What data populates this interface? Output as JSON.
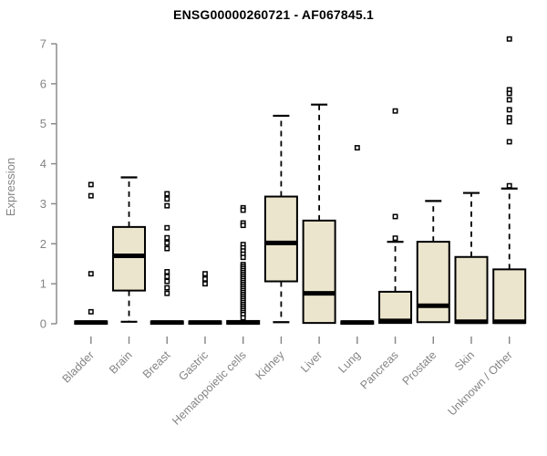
{
  "title": "ENSG00000260721 - AF067845.1",
  "colors": {
    "box_fill": "#ECE5CD",
    "box_stroke": "#000000",
    "median": "#000000",
    "whisker": "#000000",
    "outlier_stroke": "#000000",
    "outlier_fill": "#ffffff",
    "axis": "#848484",
    "axis_text": "#848484",
    "title_text": "#000000",
    "background": "#ffffff"
  },
  "chart_data": {
    "type": "boxplot",
    "title": "ENSG00000260721 - AF067845.1",
    "xlabel": "",
    "ylabel": "Expression",
    "ylim": [
      0,
      7
    ],
    "yticks": [
      0,
      1,
      2,
      3,
      4,
      5,
      6,
      7
    ],
    "grid": false,
    "legend": "none",
    "categories": [
      "Bladder",
      "Brain",
      "Breast",
      "Gastric",
      "Hematopoietic cells",
      "Kidney",
      "Liver",
      "Lung",
      "Pancreas",
      "Prostate",
      "Skin",
      "Unknown / Other"
    ],
    "series": [
      {
        "name": "Bladder",
        "whisker_low": 0,
        "q1": 0,
        "median": 0.03,
        "q3": 0.06,
        "whisker_high": 0.06,
        "outliers": [
          3.48,
          3.2,
          1.25,
          0.3
        ]
      },
      {
        "name": "Brain",
        "whisker_low": 0.05,
        "q1": 0.83,
        "median": 1.7,
        "q3": 2.42,
        "whisker_high": 3.66,
        "outliers": []
      },
      {
        "name": "Breast",
        "whisker_low": 0,
        "q1": 0,
        "median": 0.03,
        "q3": 0.06,
        "whisker_high": 0.06,
        "outliers": [
          3.25,
          3.12,
          2.95,
          2.4,
          2.15,
          2.02,
          1.88,
          1.3,
          1.18,
          1.06,
          0.9,
          0.76
        ]
      },
      {
        "name": "Gastric",
        "whisker_low": 0,
        "q1": 0,
        "median": 0.03,
        "q3": 0.06,
        "whisker_high": 0.06,
        "outliers": [
          1.25,
          1.12,
          1.0
        ]
      },
      {
        "name": "Hematopoietic cells",
        "whisker_low": 0,
        "q1": 0,
        "median": 0.03,
        "q3": 0.07,
        "whisker_high": 0.07,
        "outliers": [
          2.9,
          2.84,
          2.52,
          2.46,
          1.98,
          1.9,
          1.82,
          1.74,
          1.66,
          1.48,
          1.43,
          1.38,
          1.33,
          1.28,
          1.23,
          1.18,
          1.13,
          1.08,
          1.03,
          0.98,
          0.93,
          0.88,
          0.83,
          0.78,
          0.73,
          0.68,
          0.63,
          0.58,
          0.53,
          0.48,
          0.43,
          0.38,
          0.33,
          0.28,
          0.23,
          0.15
        ]
      },
      {
        "name": "Kidney",
        "whisker_low": 0.04,
        "q1": 1.06,
        "median": 2.02,
        "q3": 3.18,
        "whisker_high": 5.2,
        "outliers": []
      },
      {
        "name": "Liver",
        "whisker_low": 0.02,
        "q1": 0.02,
        "median": 0.76,
        "q3": 2.58,
        "whisker_high": 5.48,
        "outliers": []
      },
      {
        "name": "Lung",
        "whisker_low": 0,
        "q1": 0,
        "median": 0.03,
        "q3": 0.06,
        "whisker_high": 0.06,
        "outliers": [
          4.4
        ]
      },
      {
        "name": "Pancreas",
        "whisker_low": 0.02,
        "q1": 0.02,
        "median": 0.07,
        "q3": 0.8,
        "whisker_high": 2.05,
        "outliers": [
          5.32,
          2.68,
          2.14
        ]
      },
      {
        "name": "Prostate",
        "whisker_low": 0.04,
        "q1": 0.04,
        "median": 0.45,
        "q3": 2.05,
        "whisker_high": 3.07,
        "outliers": []
      },
      {
        "name": "Skin",
        "whisker_low": 0.02,
        "q1": 0.02,
        "median": 0.05,
        "q3": 1.67,
        "whisker_high": 3.27,
        "outliers": []
      },
      {
        "name": "Unknown / Other",
        "whisker_low": 0.02,
        "q1": 0.02,
        "median": 0.05,
        "q3": 1.36,
        "whisker_high": 3.38,
        "outliers": [
          7.12,
          5.85,
          5.76,
          5.6,
          5.35,
          5.15,
          5.05,
          4.55,
          3.45
        ]
      }
    ]
  }
}
